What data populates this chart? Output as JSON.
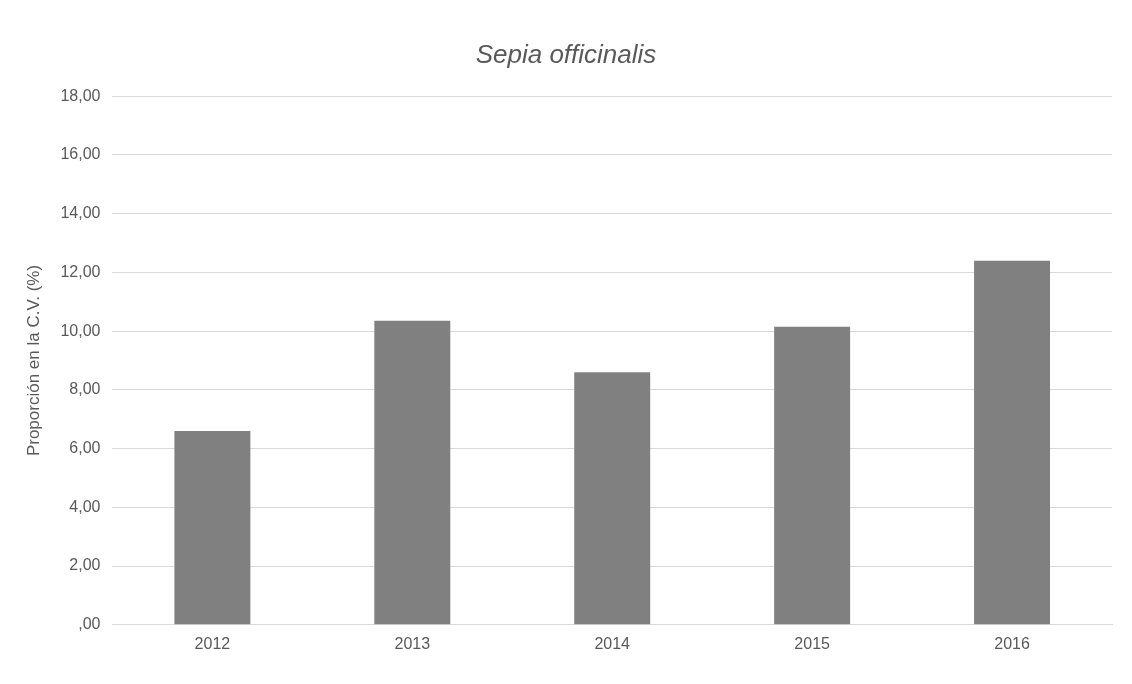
{
  "chart_data": {
    "type": "bar",
    "title": "Sepia officinalis",
    "ylabel": "Proporción en la C.V. (%)",
    "categories": [
      "2012",
      "2013",
      "2014",
      "2015",
      "2016"
    ],
    "values": [
      6.6,
      10.35,
      8.6,
      10.15,
      12.4
    ],
    "color": "#808080",
    "ylim": [
      0,
      18
    ],
    "yticks": [
      {
        "value": 0,
        "label": ",00"
      },
      {
        "value": 2,
        "label": "2,00"
      },
      {
        "value": 4,
        "label": "4,00"
      },
      {
        "value": 6,
        "label": "6,00"
      },
      {
        "value": 8,
        "label": "8,00"
      },
      {
        "value": 10,
        "label": "10,00"
      },
      {
        "value": 12,
        "label": "12,00"
      },
      {
        "value": 14,
        "label": "14,00"
      },
      {
        "value": 16,
        "label": "16,00"
      },
      {
        "value": 18,
        "label": "18,00"
      }
    ],
    "grid": "y"
  }
}
